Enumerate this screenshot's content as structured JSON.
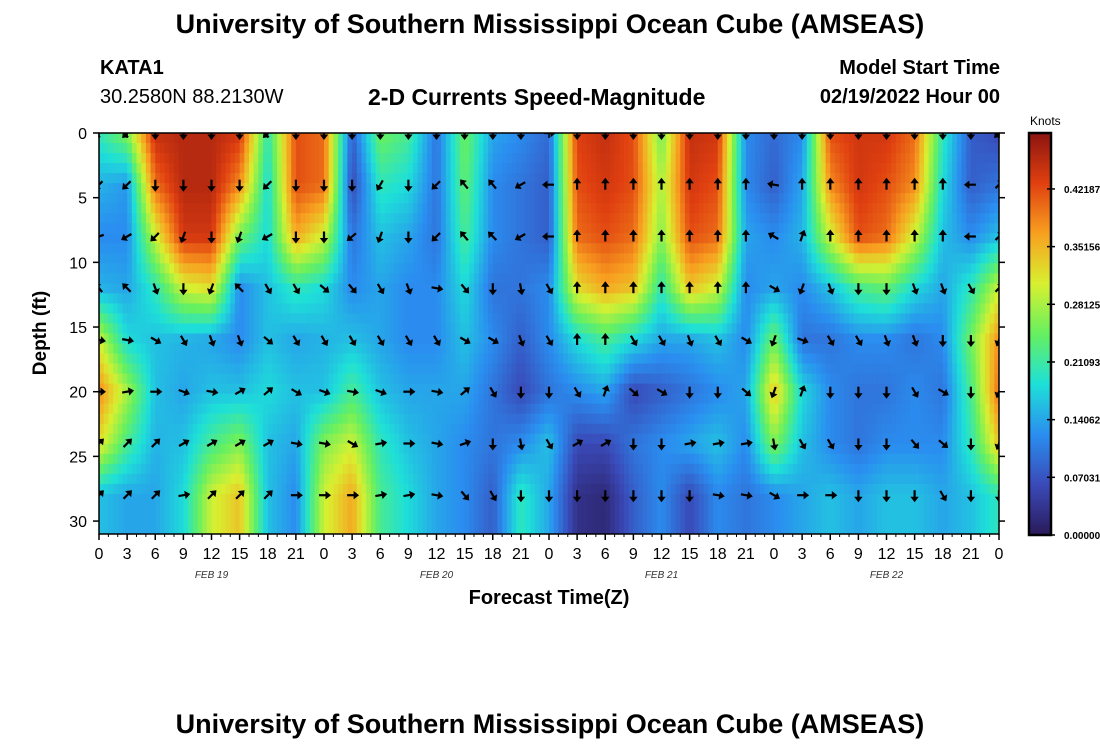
{
  "header": {
    "title": "University of Southern Mississippi Ocean Cube (AMSEAS)",
    "station": "KATA1",
    "coordinates": "30.2580N  88.2130W",
    "subtitle": "2-D Currents Speed-Magnitude",
    "model_start_label": "Model Start Time",
    "model_start_value": "02/19/2022 Hour 00"
  },
  "footer": {
    "title": "University of Southern Mississippi Ocean Cube (AMSEAS)"
  },
  "colors": {
    "scale": [
      "#2a1a5a",
      "#3a4ab8",
      "#2a8ef0",
      "#1ee0d8",
      "#66f060",
      "#d8f030",
      "#f8a020",
      "#e04010",
      "#8c1410"
    ]
  },
  "chart_data": {
    "type": "heatmap",
    "xlabel": "Forecast Time(Z)",
    "ylabel": "Depth (ft)",
    "x_ticks": [
      "0",
      "3",
      "6",
      "9",
      "12",
      "15",
      "18",
      "21",
      "0",
      "3",
      "6",
      "9",
      "12",
      "15",
      "18",
      "21",
      "0",
      "3",
      "6",
      "9",
      "12",
      "15",
      "18",
      "21",
      "0",
      "3",
      "6",
      "9",
      "12",
      "15",
      "18",
      "21",
      "0"
    ],
    "date_labels": [
      {
        "label": "FEB 19",
        "hour": 12
      },
      {
        "label": "FEB 20",
        "hour": 36
      },
      {
        "label": "FEB 21",
        "hour": 60
      },
      {
        "label": "FEB 22",
        "hour": 84
      }
    ],
    "xlim": [
      0,
      96
    ],
    "ylim": [
      0,
      31
    ],
    "y_ticks": [
      0,
      5,
      10,
      15,
      20,
      25,
      30
    ],
    "colorbar": {
      "unit": "Knots",
      "range": [
        0,
        0.49
      ],
      "ticks": [
        {
          "value": 0.0,
          "label": "0.00000"
        },
        {
          "value": 0.0703,
          "label": "0.07031"
        },
        {
          "value": 0.1406,
          "label": "0.14062"
        },
        {
          "value": 0.2109,
          "label": "0.21093"
        },
        {
          "value": 0.2812,
          "label": "0.28125"
        },
        {
          "value": 0.3515,
          "label": "0.35156"
        },
        {
          "value": 0.4218,
          "label": "0.42187"
        }
      ]
    },
    "depths": [
      0,
      4,
      8,
      12,
      16,
      20,
      24,
      28
    ],
    "hours": [
      0,
      3,
      6,
      9,
      12,
      15,
      18,
      21,
      24,
      27,
      30,
      33,
      36,
      39,
      42,
      45,
      48,
      51,
      54,
      57,
      60,
      63,
      66,
      69,
      72,
      75,
      78,
      81,
      84,
      87,
      90,
      93,
      96
    ],
    "speed": [
      [
        0.2,
        0.26,
        0.45,
        0.46,
        0.46,
        0.44,
        0.2,
        0.42,
        0.4,
        0.08,
        0.25,
        0.22,
        0.1,
        0.25,
        0.14,
        0.12,
        0.09,
        0.43,
        0.45,
        0.42,
        0.25,
        0.45,
        0.44,
        0.12,
        0.09,
        0.12,
        0.42,
        0.44,
        0.44,
        0.4,
        0.2,
        0.08,
        0.06
      ],
      [
        0.15,
        0.13,
        0.4,
        0.46,
        0.46,
        0.38,
        0.18,
        0.42,
        0.4,
        0.06,
        0.2,
        0.18,
        0.1,
        0.24,
        0.12,
        0.1,
        0.08,
        0.42,
        0.44,
        0.42,
        0.28,
        0.44,
        0.42,
        0.12,
        0.08,
        0.14,
        0.38,
        0.44,
        0.42,
        0.38,
        0.18,
        0.08,
        0.1
      ],
      [
        0.12,
        0.12,
        0.3,
        0.44,
        0.44,
        0.25,
        0.18,
        0.36,
        0.3,
        0.1,
        0.16,
        0.14,
        0.1,
        0.22,
        0.12,
        0.1,
        0.08,
        0.4,
        0.42,
        0.4,
        0.26,
        0.42,
        0.4,
        0.14,
        0.12,
        0.15,
        0.3,
        0.42,
        0.4,
        0.3,
        0.16,
        0.12,
        0.16
      ],
      [
        0.15,
        0.14,
        0.2,
        0.3,
        0.32,
        0.12,
        0.16,
        0.2,
        0.18,
        0.12,
        0.14,
        0.12,
        0.12,
        0.18,
        0.1,
        0.1,
        0.12,
        0.32,
        0.36,
        0.34,
        0.2,
        0.34,
        0.3,
        0.12,
        0.14,
        0.12,
        0.16,
        0.22,
        0.24,
        0.18,
        0.14,
        0.2,
        0.3
      ],
      [
        0.3,
        0.18,
        0.16,
        0.15,
        0.14,
        0.12,
        0.16,
        0.14,
        0.15,
        0.16,
        0.14,
        0.12,
        0.12,
        0.16,
        0.12,
        0.08,
        0.12,
        0.18,
        0.22,
        0.18,
        0.14,
        0.14,
        0.16,
        0.12,
        0.25,
        0.1,
        0.1,
        0.12,
        0.12,
        0.1,
        0.12,
        0.25,
        0.38
      ],
      [
        0.38,
        0.28,
        0.16,
        0.14,
        0.16,
        0.16,
        0.18,
        0.16,
        0.16,
        0.22,
        0.16,
        0.14,
        0.14,
        0.14,
        0.1,
        0.06,
        0.1,
        0.12,
        0.14,
        0.06,
        0.08,
        0.1,
        0.12,
        0.14,
        0.34,
        0.18,
        0.12,
        0.1,
        0.1,
        0.12,
        0.1,
        0.22,
        0.4
      ],
      [
        0.32,
        0.22,
        0.15,
        0.16,
        0.22,
        0.26,
        0.16,
        0.14,
        0.26,
        0.3,
        0.2,
        0.16,
        0.14,
        0.12,
        0.1,
        0.12,
        0.16,
        0.06,
        0.06,
        0.1,
        0.12,
        0.14,
        0.16,
        0.12,
        0.26,
        0.16,
        0.12,
        0.1,
        0.12,
        0.12,
        0.12,
        0.2,
        0.34
      ],
      [
        0.16,
        0.14,
        0.14,
        0.18,
        0.3,
        0.34,
        0.16,
        0.12,
        0.3,
        0.36,
        0.22,
        0.18,
        0.14,
        0.12,
        0.08,
        0.2,
        0.14,
        0.03,
        0.02,
        0.08,
        0.12,
        0.06,
        0.12,
        0.1,
        0.12,
        0.14,
        0.16,
        0.14,
        0.16,
        0.16,
        0.14,
        0.16,
        0.2
      ]
    ],
    "direction": [
      [
        225,
        225,
        180,
        180,
        180,
        180,
        225,
        180,
        180,
        180,
        180,
        180,
        180,
        180,
        180,
        180,
        90,
        180,
        180,
        180,
        180,
        180,
        180,
        180,
        180,
        180,
        180,
        180,
        180,
        180,
        180,
        180,
        225
      ],
      [
        225,
        225,
        180,
        180,
        180,
        180,
        225,
        180,
        180,
        180,
        210,
        180,
        225,
        320,
        320,
        240,
        270,
        0,
        0,
        0,
        0,
        0,
        0,
        0,
        280,
        0,
        0,
        0,
        0,
        0,
        0,
        270,
        45
      ],
      [
        250,
        240,
        225,
        200,
        180,
        200,
        240,
        180,
        180,
        230,
        200,
        180,
        225,
        320,
        315,
        240,
        270,
        0,
        0,
        0,
        0,
        0,
        0,
        0,
        300,
        20,
        0,
        0,
        0,
        0,
        0,
        270,
        45
      ],
      [
        320,
        315,
        160,
        180,
        200,
        315,
        150,
        150,
        130,
        140,
        150,
        160,
        100,
        140,
        180,
        170,
        150,
        0,
        0,
        0,
        0,
        0,
        0,
        0,
        120,
        200,
        160,
        180,
        180,
        160,
        160,
        150,
        45
      ],
      [
        100,
        100,
        120,
        150,
        160,
        160,
        130,
        150,
        150,
        150,
        150,
        150,
        150,
        120,
        120,
        160,
        150,
        0,
        0,
        150,
        150,
        160,
        150,
        120,
        200,
        110,
        150,
        150,
        160,
        160,
        180,
        180,
        200
      ],
      [
        90,
        80,
        90,
        110,
        100,
        60,
        50,
        120,
        110,
        100,
        110,
        90,
        100,
        50,
        150,
        180,
        180,
        150,
        20,
        130,
        120,
        180,
        180,
        130,
        200,
        20,
        180,
        180,
        180,
        150,
        120,
        180,
        200
      ],
      [
        45,
        45,
        45,
        60,
        60,
        60,
        60,
        100,
        100,
        120,
        80,
        90,
        100,
        70,
        180,
        170,
        150,
        60,
        60,
        180,
        180,
        80,
        80,
        80,
        170,
        150,
        150,
        180,
        180,
        140,
        130,
        180,
        200
      ],
      [
        45,
        45,
        45,
        80,
        45,
        45,
        45,
        90,
        90,
        90,
        80,
        80,
        100,
        140,
        150,
        180,
        180,
        180,
        180,
        180,
        180,
        180,
        100,
        100,
        120,
        90,
        90,
        180,
        180,
        180,
        150,
        180,
        180
      ]
    ]
  }
}
